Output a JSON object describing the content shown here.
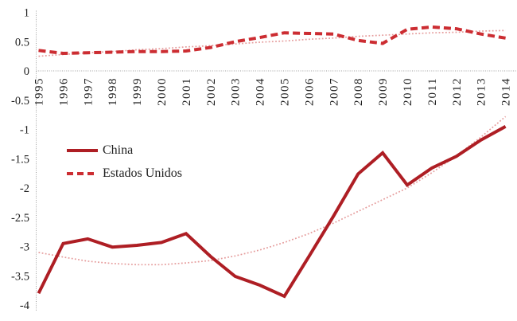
{
  "chart": {
    "background": "#ffffff",
    "axis_color": "#9e9e9e",
    "text_color": "#1f1f1f"
  },
  "chart_data": {
    "type": "line",
    "title": "",
    "xlabel": "",
    "ylabel": "",
    "x": [
      1995,
      1996,
      1997,
      1998,
      1999,
      2000,
      2001,
      2002,
      2003,
      2004,
      2005,
      2006,
      2007,
      2008,
      2009,
      2010,
      2011,
      2012,
      2013,
      2014
    ],
    "ylim": [
      -4,
      1
    ],
    "yticks": [
      1,
      0.5,
      0,
      -0.5,
      -1,
      -1.5,
      -2,
      -2.5,
      -3,
      -3.5,
      -4
    ],
    "grid": "zero-baseline-only",
    "legend_position": "middle-left",
    "series": [
      {
        "name": "China",
        "style": "solid",
        "color": "#AE1E24",
        "width": 4,
        "in_legend": true,
        "values": [
          -3.8,
          -2.95,
          -2.87,
          -3.01,
          -2.98,
          -2.93,
          -2.78,
          -3.17,
          -3.51,
          -3.66,
          -3.85,
          -3.17,
          -2.48,
          -1.76,
          -1.4,
          -1.95,
          -1.66,
          -1.46,
          -1.18,
          -0.95
        ]
      },
      {
        "name": "Estados Unidos",
        "style": "dashed",
        "color": "#CC2D32",
        "width": 4,
        "in_legend": true,
        "values": [
          0.35,
          0.3,
          0.31,
          0.32,
          0.33,
          0.33,
          0.34,
          0.4,
          0.5,
          0.57,
          0.65,
          0.64,
          0.63,
          0.52,
          0.47,
          0.71,
          0.75,
          0.72,
          0.63,
          0.56
        ]
      },
      {
        "name": "china-trend",
        "style": "dotted",
        "color": "#E59B9B",
        "width": 1.7,
        "in_legend": false,
        "values": [
          -3.1,
          -3.18,
          -3.25,
          -3.29,
          -3.31,
          -3.31,
          -3.28,
          -3.24,
          -3.16,
          -3.06,
          -2.93,
          -2.78,
          -2.6,
          -2.4,
          -2.2,
          -2.0,
          -1.74,
          -1.45,
          -1.13,
          -0.78
        ]
      },
      {
        "name": "us-trend",
        "style": "dotted",
        "color": "#E59B9B",
        "width": 1.7,
        "in_legend": false,
        "values": [
          0.25,
          0.28,
          0.31,
          0.33,
          0.36,
          0.38,
          0.41,
          0.43,
          0.46,
          0.49,
          0.51,
          0.54,
          0.56,
          0.59,
          0.61,
          0.63,
          0.65,
          0.66,
          0.68,
          0.69
        ]
      }
    ]
  }
}
